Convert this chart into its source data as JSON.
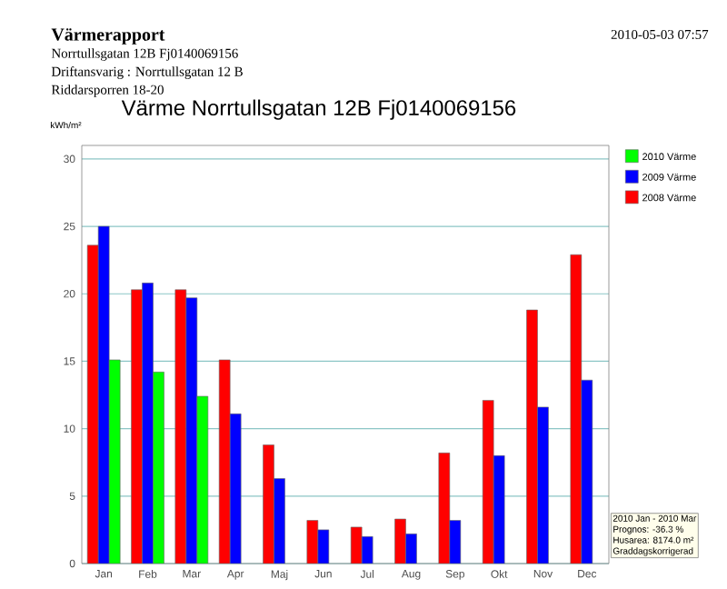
{
  "chart_data": {
    "type": "bar",
    "title": "Värme Norrtullsgatan 12B Fj0140069156",
    "ylabel": "kWh/m²",
    "categories": [
      "Jan",
      "Feb",
      "Mar",
      "Apr",
      "Maj",
      "Jun",
      "Jul",
      "Aug",
      "Sep",
      "Okt",
      "Nov",
      "Dec"
    ],
    "series": [
      {
        "name": "2008 Värme",
        "color": "#ff0000",
        "values": [
          23.6,
          20.3,
          20.3,
          15.1,
          8.8,
          3.2,
          2.7,
          3.3,
          8.2,
          12.1,
          18.8,
          22.9
        ]
      },
      {
        "name": "2009 Värme",
        "color": "#0000ff",
        "values": [
          25.0,
          20.8,
          19.7,
          11.1,
          6.3,
          2.5,
          2.0,
          2.2,
          3.2,
          8.0,
          11.6,
          13.6
        ]
      },
      {
        "name": "2010 Värme",
        "color": "#00ff00",
        "values": [
          15.1,
          14.2,
          12.4,
          null,
          null,
          null,
          null,
          null,
          null,
          null,
          null,
          null
        ]
      }
    ],
    "ylim": [
      0,
      31
    ],
    "yticks": [
      0,
      5,
      10,
      15,
      20,
      25,
      30
    ],
    "grid": "y",
    "legend": "top right",
    "annotations": [
      "**Värmerapport**",
      "Norrtullsgatan 12B Fj0140069156",
      "Driftansvarig : Norrtullsgatan 12 B",
      "Riddarsporren 18-20",
      "2010-05-03 07:57",
      "2010 Jan - 2010 Mar",
      "Prognos: -36.3 %",
      "Husarea: 8174.0 m²",
      "Graddagskorrigerad"
    ]
  }
}
